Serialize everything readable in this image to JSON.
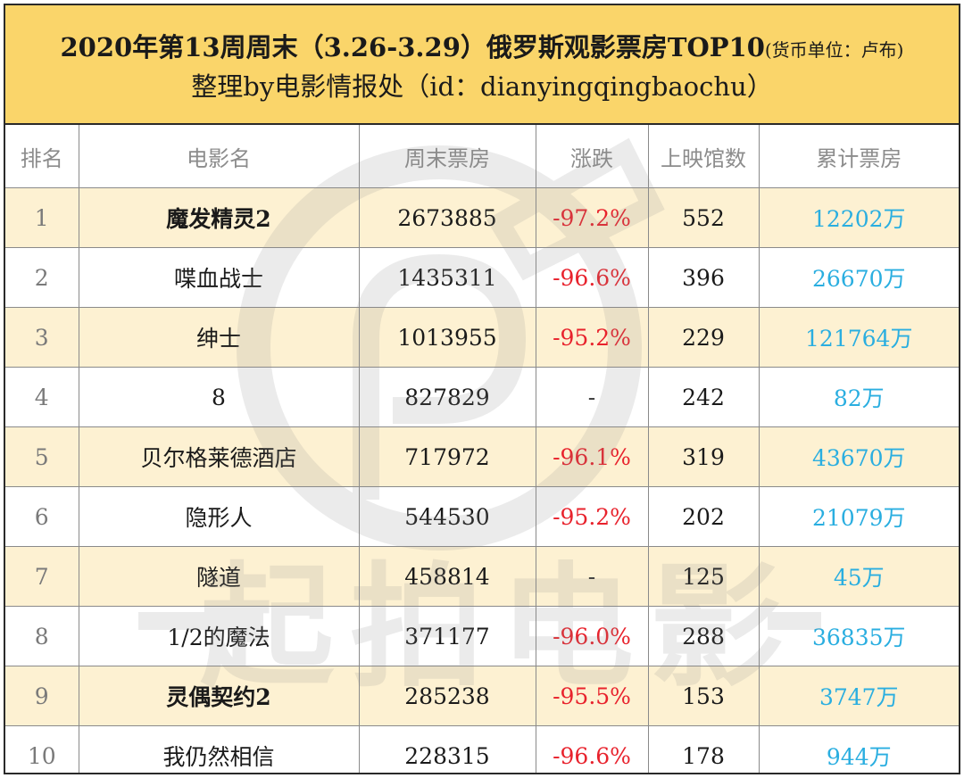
{
  "header": {
    "title_main": "2020年第13周周末（3.26-3.29）俄罗斯观影票房TOP10",
    "title_unit": "(货币单位：卢布)",
    "subtitle": "整理by电影情报处（id：dianyingqingbaochu）"
  },
  "columns": [
    "排名",
    "电影名",
    "周末票房",
    "涨跌",
    "上映馆数",
    "累计票房"
  ],
  "rows": [
    {
      "rank": "1",
      "movie": "魔发精灵2",
      "weekend": "2673885",
      "change": "-97.2%",
      "cinemas": "552",
      "total": "12202万",
      "bold": true
    },
    {
      "rank": "2",
      "movie": "喋血战士",
      "weekend": "1435311",
      "change": "-96.6%",
      "cinemas": "396",
      "total": "26670万",
      "bold": false
    },
    {
      "rank": "3",
      "movie": "绅士",
      "weekend": "1013955",
      "change": "-95.2%",
      "cinemas": "229",
      "total": "121764万",
      "bold": false
    },
    {
      "rank": "4",
      "movie": "8",
      "weekend": "827829",
      "change": "-",
      "cinemas": "242",
      "total": "82万",
      "bold": false
    },
    {
      "rank": "5",
      "movie": "贝尔格莱德酒店",
      "weekend": "717972",
      "change": "-96.1%",
      "cinemas": "319",
      "total": "43670万",
      "bold": false
    },
    {
      "rank": "6",
      "movie": "隐形人",
      "weekend": "544530",
      "change": "-95.2%",
      "cinemas": "202",
      "total": "21079万",
      "bold": false
    },
    {
      "rank": "7",
      "movie": "隧道",
      "weekend": "458814",
      "change": "-",
      "cinemas": "125",
      "total": "45万",
      "bold": false
    },
    {
      "rank": "8",
      "movie": "1/2的魔法",
      "weekend": "371177",
      "change": "-96.0%",
      "cinemas": "288",
      "total": "36835万",
      "bold": false
    },
    {
      "rank": "9",
      "movie": "灵偶契约2",
      "weekend": "285238",
      "change": "-95.5%",
      "cinemas": "153",
      "total": "3747万",
      "bold": true
    },
    {
      "rank": "10",
      "movie": "我仍然相信",
      "weekend": "228315",
      "change": "-96.6%",
      "cinemas": "178",
      "total": "944万",
      "bold": false
    }
  ],
  "watermark": {
    "text": "起拍电影",
    "logo": "film-camera-logo"
  },
  "colors": {
    "header_bg": "#fad56a",
    "row_highlight": "#fdf1d2",
    "change_down": "#e8222c",
    "total_text": "#2aaee0",
    "watermark": "#b9b9b9"
  }
}
